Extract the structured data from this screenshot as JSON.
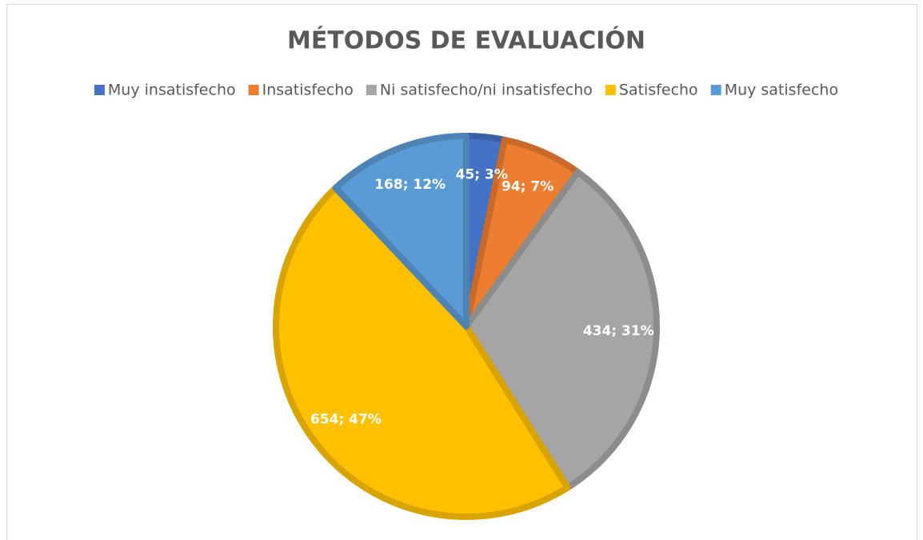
{
  "chart_data": {
    "type": "pie",
    "title": "MÉTODOS DE EVALUACIÓN",
    "categories": [
      "Muy insatisfecho",
      "Insatisfecho",
      "Ni satisfecho/ni insatisfecho",
      "Satisfecho",
      "Muy satisfecho"
    ],
    "values": [
      45,
      94,
      434,
      654,
      168
    ],
    "value_labels": [
      "45; 3%",
      "94; 7%",
      "434; 31%",
      "654; 47%",
      "168; 12%"
    ],
    "colors": [
      "#4472c4",
      "#ed7d31",
      "#a5a5a5",
      "#ffc000",
      "#5b9bd5"
    ],
    "legend": "top"
  }
}
